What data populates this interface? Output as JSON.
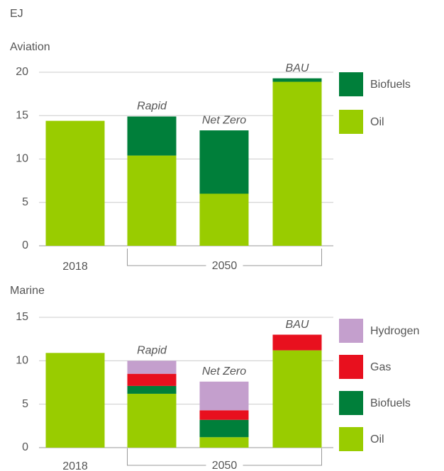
{
  "unit_label": "EJ",
  "chart_data": [
    {
      "type": "stacked_bar",
      "title": "Aviation",
      "categories": [
        "2018",
        "Rapid",
        "Net Zero",
        "BAU"
      ],
      "group_label": "2050",
      "series": [
        {
          "name": "Oil",
          "color": "#99cc00",
          "values": [
            14.4,
            10.4,
            6.0,
            18.9
          ]
        },
        {
          "name": "Biofuels",
          "color": "#007f3a",
          "values": [
            0,
            4.5,
            7.3,
            0.4
          ]
        }
      ],
      "ylim": [
        0,
        20
      ],
      "yticks": [
        0,
        5,
        10,
        15,
        20
      ],
      "grid": true
    },
    {
      "type": "stacked_bar",
      "title": "Marine",
      "categories": [
        "2018",
        "Rapid",
        "Net Zero",
        "BAU"
      ],
      "group_label": "2050",
      "series": [
        {
          "name": "Oil",
          "color": "#99cc00",
          "values": [
            10.9,
            6.2,
            1.2,
            11.2
          ]
        },
        {
          "name": "Biofuels",
          "color": "#007f3a",
          "values": [
            0,
            0.9,
            2.0,
            0
          ]
        },
        {
          "name": "Gas",
          "color": "#e8101e",
          "values": [
            0,
            1.4,
            1.1,
            1.8
          ]
        },
        {
          "name": "Hydrogen",
          "color": "#c49fcd",
          "values": [
            0,
            1.5,
            3.3,
            0
          ]
        }
      ],
      "ylim": [
        0,
        15
      ],
      "yticks": [
        0,
        5,
        10,
        15
      ],
      "grid": true
    }
  ]
}
